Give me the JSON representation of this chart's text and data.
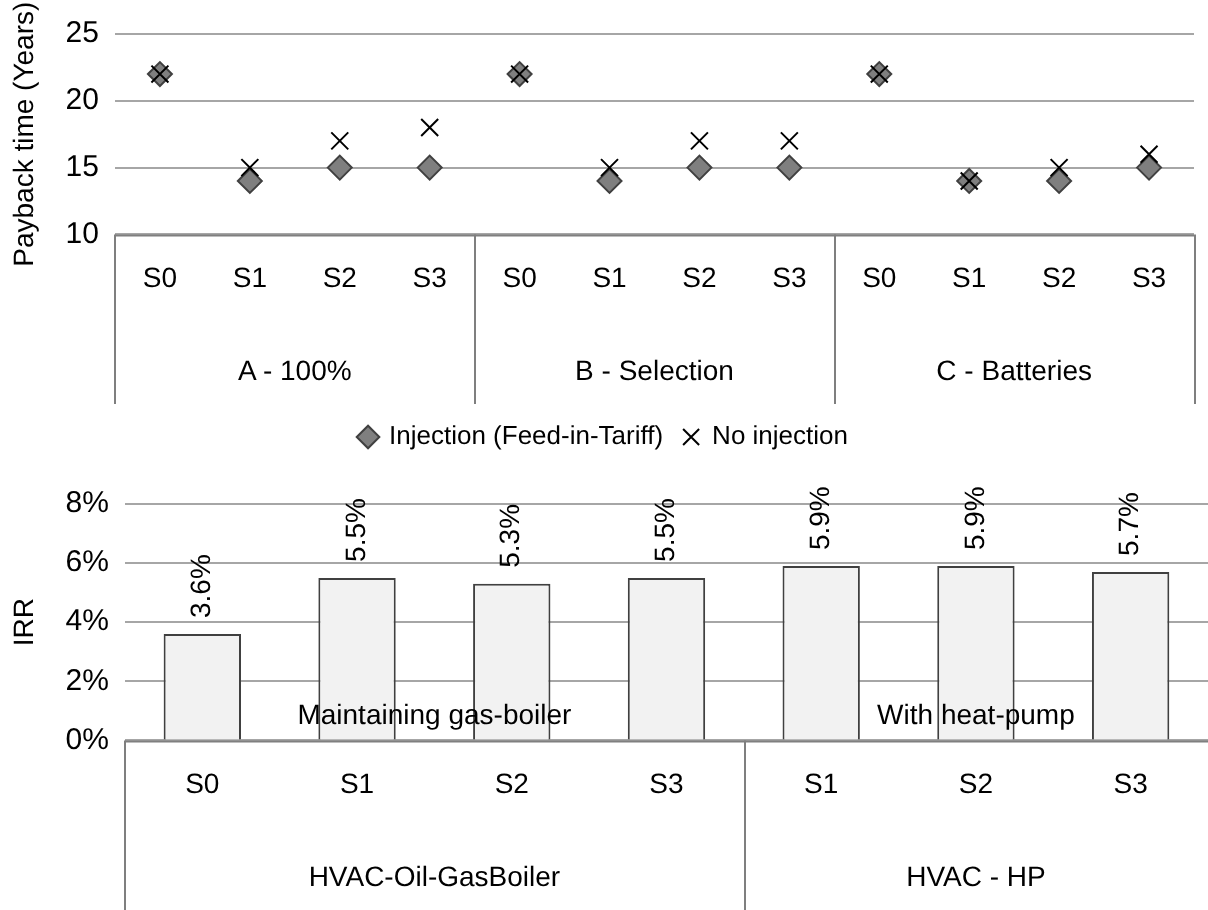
{
  "chart_data": [
    {
      "type": "scatter",
      "ylabel": "Payback time (Years)",
      "categories": [
        "S0",
        "S1",
        "S2",
        "S3",
        "S0",
        "S1",
        "S2",
        "S3",
        "S0",
        "S1",
        "S2",
        "S3"
      ],
      "series": [
        {
          "name": "Injection (Feed-in-Tariff)",
          "color": "#7f7f7f",
          "marker": "diamond",
          "values": [
            22,
            14,
            15,
            15,
            22,
            14,
            15,
            15,
            22,
            14,
            14,
            15
          ]
        },
        {
          "name": "No injection",
          "color": "#000000",
          "marker": "cross",
          "values": [
            22,
            15,
            17,
            18,
            22,
            15,
            17,
            17,
            22,
            14,
            15,
            16
          ]
        }
      ],
      "ylim": [
        10,
        25
      ],
      "yticks": [
        10,
        15,
        20,
        25
      ],
      "grid": "y",
      "legend": "bottom",
      "annotations": [
        "A - 100%",
        "B - Selection",
        "C - Batteries"
      ]
    },
    {
      "type": "bar",
      "ylabel": "IRR",
      "categories": [
        "S0",
        "S1",
        "S2",
        "S3",
        "S1",
        "S2",
        "S3"
      ],
      "color": "#f2f2f2",
      "values": [
        3.6,
        5.5,
        5.3,
        5.5,
        5.9,
        5.9,
        5.7
      ],
      "value_labels": [
        "3.6%",
        "5.5%",
        "5.3%",
        "5.5%",
        "5.9%",
        "5.9%",
        "5.7%"
      ],
      "ylim": [
        0,
        8
      ],
      "yticks": [
        {
          "value": 0,
          "label": "0%"
        },
        {
          "value": 2,
          "label": "2%"
        },
        {
          "value": 4,
          "label": "4%"
        },
        {
          "value": 6,
          "label": "6%"
        },
        {
          "value": 8,
          "label": "8%"
        }
      ],
      "grid": "y",
      "annotations": [
        "HVAC-Oil-GasBoiler",
        "HVAC - HP",
        "Maintaining gas-boiler",
        "With heat-pump"
      ]
    }
  ]
}
